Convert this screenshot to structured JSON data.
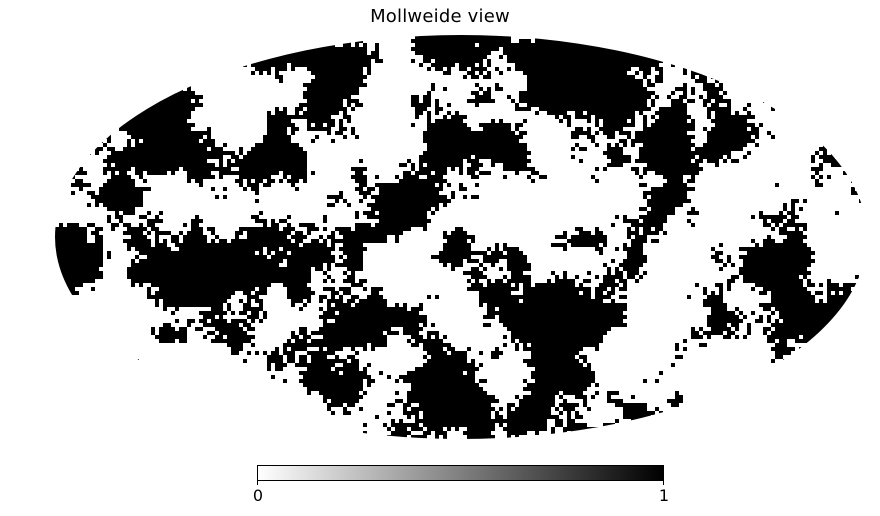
{
  "chart_data": {
    "type": "heatmap",
    "projection": "mollweide",
    "title": "Mollweide view",
    "colormap": "binary",
    "colorbar": {
      "orientation": "horizontal",
      "placement": "bottom",
      "min": 0,
      "max": 1,
      "ticks": [
        "0",
        "1"
      ]
    },
    "pixel_values": "binary (0 or 1), random clustered pattern",
    "grid": false,
    "legend": "none"
  }
}
